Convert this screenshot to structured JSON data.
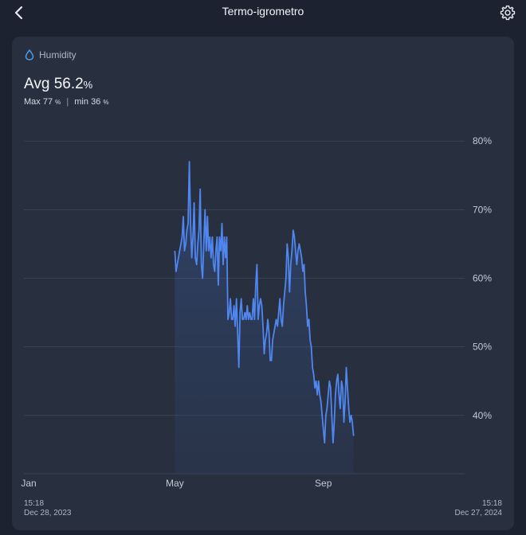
{
  "header": {
    "title": "Termo-igrometro",
    "back_icon": "chevron-left-icon",
    "settings_icon": "gear-icon"
  },
  "card": {
    "metric_icon": "water-drop-icon",
    "metric_label": "Humidity",
    "avg_label": "Avg",
    "avg_value": "56.2",
    "unit": "%",
    "max_label": "Max",
    "max_value": "77",
    "min_label": "min",
    "min_value": "36",
    "start_time": "15:18",
    "start_date": "Dec 28, 2023",
    "end_time": "15:18",
    "end_date": "Dec 27, 2024"
  },
  "colors": {
    "background": "#1c2230",
    "card": "#28303f",
    "line": "#4f86f0",
    "grid": "#3a4354",
    "accent": "#4a9ff5"
  },
  "chart_data": {
    "type": "area",
    "title": "",
    "xlabel": "",
    "ylabel": "",
    "grid": true,
    "ylim": [
      31.5,
      82
    ],
    "xlim": [
      "2023-12-28",
      "2024-12-27"
    ],
    "y_ticks": [
      80,
      70,
      60,
      50,
      40
    ],
    "y_tick_labels": [
      "80%",
      "70%",
      "60%",
      "50%",
      "40%"
    ],
    "x_ticks": [
      "2024-01-01",
      "2024-05-01",
      "2024-09-01"
    ],
    "x_tick_labels": [
      "Jan",
      "May",
      "Sep"
    ],
    "series": [
      {
        "name": "",
        "points": [
          [
            "2024-05-01",
            64
          ],
          [
            "2024-05-02",
            61
          ],
          [
            "2024-05-03",
            62
          ],
          [
            "2024-05-04",
            63
          ],
          [
            "2024-05-05",
            64
          ],
          [
            "2024-05-06",
            65
          ],
          [
            "2024-05-07",
            66
          ],
          [
            "2024-05-08",
            69
          ],
          [
            "2024-05-09",
            64
          ],
          [
            "2024-05-10",
            65
          ],
          [
            "2024-05-11",
            67
          ],
          [
            "2024-05-12",
            68
          ],
          [
            "2024-05-13",
            77
          ],
          [
            "2024-05-14",
            68
          ],
          [
            "2024-05-15",
            63
          ],
          [
            "2024-05-16",
            66
          ],
          [
            "2024-05-17",
            71
          ],
          [
            "2024-05-18",
            63
          ],
          [
            "2024-05-19",
            62
          ],
          [
            "2024-05-20",
            65
          ],
          [
            "2024-05-21",
            67
          ],
          [
            "2024-05-22",
            73
          ],
          [
            "2024-05-23",
            62
          ],
          [
            "2024-05-24",
            60
          ],
          [
            "2024-05-25",
            65
          ],
          [
            "2024-05-26",
            70
          ],
          [
            "2024-05-27",
            64
          ],
          [
            "2024-05-28",
            69
          ],
          [
            "2024-05-29",
            64
          ],
          [
            "2024-05-30",
            66
          ],
          [
            "2024-05-31",
            63
          ],
          [
            "2024-06-01",
            66
          ],
          [
            "2024-06-02",
            62
          ],
          [
            "2024-06-03",
            61
          ],
          [
            "2024-06-04",
            64
          ],
          [
            "2024-06-05",
            66
          ],
          [
            "2024-06-06",
            59
          ],
          [
            "2024-06-07",
            66
          ],
          [
            "2024-06-08",
            64
          ],
          [
            "2024-06-09",
            68
          ],
          [
            "2024-06-10",
            62
          ],
          [
            "2024-06-11",
            66
          ],
          [
            "2024-06-12",
            63
          ],
          [
            "2024-06-13",
            66
          ],
          [
            "2024-06-14",
            54
          ],
          [
            "2024-06-15",
            55
          ],
          [
            "2024-06-16",
            57
          ],
          [
            "2024-06-17",
            54
          ],
          [
            "2024-06-18",
            54
          ],
          [
            "2024-06-19",
            56
          ],
          [
            "2024-06-20",
            53
          ],
          [
            "2024-06-21",
            57
          ],
          [
            "2024-06-22",
            52
          ],
          [
            "2024-06-23",
            47
          ],
          [
            "2024-06-24",
            55
          ],
          [
            "2024-06-25",
            57
          ],
          [
            "2024-06-26",
            54
          ],
          [
            "2024-06-27",
            54
          ],
          [
            "2024-06-28",
            55
          ],
          [
            "2024-06-29",
            54
          ],
          [
            "2024-06-30",
            56
          ],
          [
            "2024-07-01",
            54
          ],
          [
            "2024-07-02",
            55
          ],
          [
            "2024-07-03",
            54
          ],
          [
            "2024-07-04",
            54
          ],
          [
            "2024-07-05",
            57
          ],
          [
            "2024-07-06",
            54
          ],
          [
            "2024-07-07",
            59
          ],
          [
            "2024-07-08",
            62
          ],
          [
            "2024-07-09",
            54
          ],
          [
            "2024-07-10",
            56
          ],
          [
            "2024-07-11",
            57
          ],
          [
            "2024-07-12",
            56
          ],
          [
            "2024-07-13",
            53
          ],
          [
            "2024-07-14",
            49
          ],
          [
            "2024-07-15",
            51
          ],
          [
            "2024-07-16",
            52
          ],
          [
            "2024-07-17",
            54
          ],
          [
            "2024-07-18",
            52
          ],
          [
            "2024-07-19",
            48
          ],
          [
            "2024-07-20",
            48
          ],
          [
            "2024-07-21",
            51
          ],
          [
            "2024-07-22",
            52
          ],
          [
            "2024-07-23",
            53
          ],
          [
            "2024-07-24",
            54
          ],
          [
            "2024-07-25",
            53
          ],
          [
            "2024-07-26",
            55
          ],
          [
            "2024-07-27",
            57
          ],
          [
            "2024-07-28",
            54
          ],
          [
            "2024-07-29",
            53
          ],
          [
            "2024-07-30",
            56
          ],
          [
            "2024-07-31",
            58
          ],
          [
            "2024-08-01",
            60
          ],
          [
            "2024-08-02",
            65
          ],
          [
            "2024-08-03",
            63
          ],
          [
            "2024-08-04",
            58
          ],
          [
            "2024-08-05",
            62
          ],
          [
            "2024-08-06",
            64
          ],
          [
            "2024-08-07",
            67
          ],
          [
            "2024-08-08",
            66
          ],
          [
            "2024-08-09",
            64
          ],
          [
            "2024-08-10",
            62
          ],
          [
            "2024-08-11",
            64
          ],
          [
            "2024-08-12",
            65
          ],
          [
            "2024-08-13",
            64
          ],
          [
            "2024-08-14",
            63
          ],
          [
            "2024-08-15",
            61
          ],
          [
            "2024-08-16",
            62
          ],
          [
            "2024-08-17",
            58
          ],
          [
            "2024-08-18",
            56
          ],
          [
            "2024-08-19",
            53
          ],
          [
            "2024-08-20",
            54
          ],
          [
            "2024-08-21",
            51
          ],
          [
            "2024-08-22",
            50
          ],
          [
            "2024-08-23",
            47
          ],
          [
            "2024-08-24",
            46
          ],
          [
            "2024-08-25",
            44
          ],
          [
            "2024-08-26",
            45
          ],
          [
            "2024-08-27",
            43
          ],
          [
            "2024-08-28",
            45
          ],
          [
            "2024-08-29",
            43
          ],
          [
            "2024-08-30",
            42
          ],
          [
            "2024-08-31",
            40
          ],
          [
            "2024-09-01",
            38
          ],
          [
            "2024-09-02",
            36
          ],
          [
            "2024-09-03",
            40
          ],
          [
            "2024-09-04",
            41
          ],
          [
            "2024-09-05",
            43
          ],
          [
            "2024-09-06",
            45
          ],
          [
            "2024-09-07",
            44
          ],
          [
            "2024-09-08",
            40
          ],
          [
            "2024-09-09",
            36
          ],
          [
            "2024-09-10",
            39
          ],
          [
            "2024-09-11",
            43
          ],
          [
            "2024-09-12",
            45
          ],
          [
            "2024-09-13",
            46
          ],
          [
            "2024-09-14",
            43
          ],
          [
            "2024-09-15",
            41
          ],
          [
            "2024-09-16",
            45
          ],
          [
            "2024-09-17",
            44
          ],
          [
            "2024-09-18",
            39
          ],
          [
            "2024-09-19",
            42
          ],
          [
            "2024-09-20",
            47
          ],
          [
            "2024-09-21",
            44
          ],
          [
            "2024-09-22",
            41
          ],
          [
            "2024-09-23",
            39
          ],
          [
            "2024-09-24",
            40
          ],
          [
            "2024-09-25",
            39
          ],
          [
            "2024-09-26",
            37
          ]
        ]
      }
    ]
  }
}
